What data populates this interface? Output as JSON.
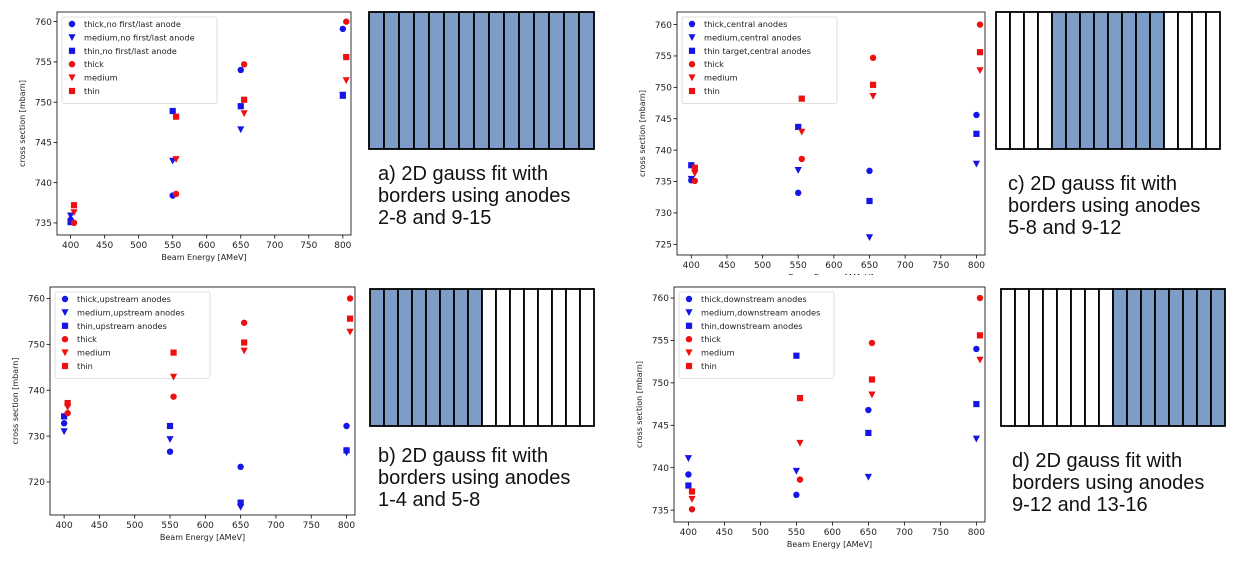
{
  "colors": {
    "blue": "#1515e6",
    "red": "#ee1010",
    "light_red": "#f2b6b6",
    "light_blue": "#c0c4ef",
    "anode_fill": "#7e9dc6"
  },
  "panels": [
    {
      "caption": [
        "a) 2D gauss fit with",
        "borders using anodes",
        "2-8 and 9-15"
      ],
      "anodes": {
        "count": 15,
        "shaded_from": 1,
        "shaded_to": 15
      },
      "chart": {
        "type": "scatter",
        "xlabel": "Beam Energy [AMeV]",
        "ylabel": "cross section [mbarn]",
        "xticks": [
          400,
          450,
          500,
          550,
          600,
          650,
          700,
          750,
          800
        ],
        "yticks": [
          735,
          740,
          745,
          750,
          755,
          760
        ],
        "xlim": [
          380,
          812
        ],
        "ylim": [
          733.5,
          761.2
        ],
        "legend_position": "upper-left",
        "series": [
          {
            "name": "thick,no first/last anode",
            "color": "blue",
            "marker": "circle",
            "points": [
              [
                400,
                735.4
              ],
              [
                550,
                738.4
              ],
              [
                650,
                754.0
              ],
              [
                800,
                759.1
              ]
            ]
          },
          {
            "name": "medium,no first/last anode",
            "color": "blue",
            "marker": "triangle",
            "points": [
              [
                400,
                735.9
              ],
              [
                550,
                742.7
              ],
              [
                650,
                746.6
              ],
              [
                800,
                750.9
              ]
            ]
          },
          {
            "name": "thin,no first/last anode",
            "color": "blue",
            "marker": "square",
            "points": [
              [
                400,
                735.1
              ],
              [
                550,
                748.9
              ],
              [
                650,
                749.5
              ],
              [
                800,
                750.8
              ]
            ]
          },
          {
            "name": "thick",
            "color": "red",
            "marker": "circle",
            "points": [
              [
                405,
                735.0
              ],
              [
                555,
                738.6
              ],
              [
                655,
                754.7
              ],
              [
                805,
                760.0
              ]
            ]
          },
          {
            "name": "medium",
            "color": "red",
            "marker": "triangle",
            "points": [
              [
                405,
                736.3
              ],
              [
                555,
                742.9
              ],
              [
                655,
                748.6
              ],
              [
                805,
                752.7
              ]
            ]
          },
          {
            "name": "thin",
            "color": "red",
            "marker": "square",
            "points": [
              [
                405,
                737.2
              ],
              [
                555,
                748.2
              ],
              [
                655,
                750.3
              ],
              [
                805,
                755.6
              ]
            ]
          }
        ]
      }
    },
    {
      "caption": [
        "c) 2D gauss fit with",
        "borders using anodes",
        "5-8 and 9-12"
      ],
      "anodes": {
        "count": 16,
        "shaded_from": 5,
        "shaded_to": 12
      },
      "chart": {
        "type": "scatter",
        "xlabel": "Beam Energy [AMeV]",
        "ylabel": "cross section [mbarn]",
        "xticks": [
          400,
          450,
          500,
          550,
          600,
          650,
          700,
          750,
          800
        ],
        "yticks": [
          725,
          730,
          735,
          740,
          745,
          750,
          755,
          760
        ],
        "xlim": [
          380,
          812
        ],
        "ylim": [
          723.3,
          762.0
        ],
        "legend_position": "upper-left",
        "series": [
          {
            "name": "thick,central anodes",
            "color": "blue",
            "marker": "circle",
            "points": [
              [
                400,
                735.2
              ],
              [
                550,
                733.2
              ],
              [
                650,
                736.7
              ],
              [
                800,
                745.6
              ]
            ]
          },
          {
            "name": "medium,central anodes",
            "color": "blue",
            "marker": "triangle",
            "points": [
              [
                400,
                735.4
              ],
              [
                550,
                736.8
              ],
              [
                650,
                726.1
              ],
              [
                800,
                737.8
              ]
            ]
          },
          {
            "name": "thin target,central anodes",
            "color": "blue",
            "marker": "square",
            "points": [
              [
                400,
                737.6
              ],
              [
                550,
                743.7
              ],
              [
                650,
                731.9
              ],
              [
                800,
                742.6
              ]
            ]
          },
          {
            "name": "thick",
            "color": "red",
            "marker": "circle",
            "points": [
              [
                405,
                735.1
              ],
              [
                555,
                738.6
              ],
              [
                655,
                754.7
              ],
              [
                805,
                760.0
              ]
            ]
          },
          {
            "name": "medium",
            "color": "red",
            "marker": "triangle",
            "points": [
              [
                405,
                736.3
              ],
              [
                555,
                742.9
              ],
              [
                655,
                748.6
              ],
              [
                805,
                752.7
              ]
            ]
          },
          {
            "name": "thin",
            "color": "red",
            "marker": "square",
            "points": [
              [
                405,
                737.2
              ],
              [
                555,
                748.2
              ],
              [
                655,
                750.4
              ],
              [
                805,
                755.6
              ]
            ]
          }
        ]
      }
    },
    {
      "caption": [
        "b) 2D gauss fit with",
        "borders using anodes",
        "1-4 and 5-8"
      ],
      "anodes": {
        "count": 16,
        "shaded_from": 1,
        "shaded_to": 8
      },
      "chart": {
        "type": "scatter",
        "xlabel": "Beam Energy [AMeV]",
        "ylabel": "cross section [mbarn]",
        "xticks": [
          400,
          450,
          500,
          550,
          600,
          650,
          700,
          750,
          800
        ],
        "yticks": [
          720,
          730,
          740,
          750,
          760
        ],
        "xlim": [
          380,
          812
        ],
        "ylim": [
          712.8,
          762.5
        ],
        "legend_position": "upper-left",
        "series": [
          {
            "name": "thick,upstream anodes",
            "color": "blue",
            "marker": "circle",
            "points": [
              [
                400,
                732.8
              ],
              [
                550,
                726.6
              ],
              [
                650,
                723.3
              ],
              [
                800,
                732.2
              ]
            ]
          },
          {
            "name": "medium,upstream anodes",
            "color": "blue",
            "marker": "triangle",
            "points": [
              [
                400,
                731.0
              ],
              [
                550,
                729.3
              ],
              [
                650,
                714.5
              ],
              [
                800,
                726.4
              ]
            ]
          },
          {
            "name": "thin,upstream anodes",
            "color": "blue",
            "marker": "square",
            "points": [
              [
                400,
                734.3
              ],
              [
                550,
                732.2
              ],
              [
                650,
                715.5
              ],
              [
                800,
                726.9
              ]
            ]
          },
          {
            "name": "thick",
            "color": "red",
            "marker": "circle",
            "points": [
              [
                405,
                735.0
              ],
              [
                555,
                738.6
              ],
              [
                655,
                754.7
              ],
              [
                805,
                760.0
              ]
            ]
          },
          {
            "name": "medium",
            "color": "red",
            "marker": "triangle",
            "points": [
              [
                405,
                736.3
              ],
              [
                555,
                742.9
              ],
              [
                655,
                748.6
              ],
              [
                805,
                752.7
              ]
            ]
          },
          {
            "name": "thin",
            "color": "red",
            "marker": "square",
            "points": [
              [
                405,
                737.2
              ],
              [
                555,
                748.2
              ],
              [
                655,
                750.4
              ],
              [
                805,
                755.6
              ]
            ]
          }
        ]
      }
    },
    {
      "caption": [
        "d) 2D gauss fit with",
        "borders using anodes",
        "9-12 and 13-16"
      ],
      "anodes": {
        "count": 16,
        "shaded_from": 9,
        "shaded_to": 16
      },
      "chart": {
        "type": "scatter",
        "xlabel": "Beam Energy [AMeV]",
        "ylabel": "cross section [mbarn]",
        "xticks": [
          400,
          450,
          500,
          550,
          600,
          650,
          700,
          750,
          800
        ],
        "yticks": [
          735,
          740,
          745,
          750,
          755,
          760
        ],
        "xlim": [
          380,
          812
        ],
        "ylim": [
          733.6,
          761.3
        ],
        "legend_position": "upper-left",
        "series": [
          {
            "name": "thick,downstream anodes",
            "color": "blue",
            "marker": "circle",
            "points": [
              [
                400,
                739.2
              ],
              [
                550,
                736.8
              ],
              [
                650,
                746.8
              ],
              [
                800,
                754.0
              ]
            ]
          },
          {
            "name": "medium,downstream anodes",
            "color": "blue",
            "marker": "triangle",
            "points": [
              [
                400,
                741.1
              ],
              [
                550,
                739.6
              ],
              [
                650,
                738.9
              ],
              [
                800,
                743.4
              ]
            ]
          },
          {
            "name": "thin,downstream anodes",
            "color": "blue",
            "marker": "square",
            "points": [
              [
                400,
                737.9
              ],
              [
                550,
                753.2
              ],
              [
                650,
                744.1
              ],
              [
                800,
                747.5
              ]
            ]
          },
          {
            "name": "thick",
            "color": "red",
            "marker": "circle",
            "points": [
              [
                405,
                735.1
              ],
              [
                555,
                738.6
              ],
              [
                655,
                754.7
              ],
              [
                805,
                760.0
              ]
            ]
          },
          {
            "name": "medium",
            "color": "red",
            "marker": "triangle",
            "points": [
              [
                405,
                736.3
              ],
              [
                555,
                742.9
              ],
              [
                655,
                748.6
              ],
              [
                805,
                752.7
              ]
            ]
          },
          {
            "name": "thin",
            "color": "red",
            "marker": "square",
            "points": [
              [
                405,
                737.2
              ],
              [
                555,
                748.2
              ],
              [
                655,
                750.4
              ],
              [
                805,
                755.6
              ]
            ]
          }
        ]
      }
    }
  ]
}
